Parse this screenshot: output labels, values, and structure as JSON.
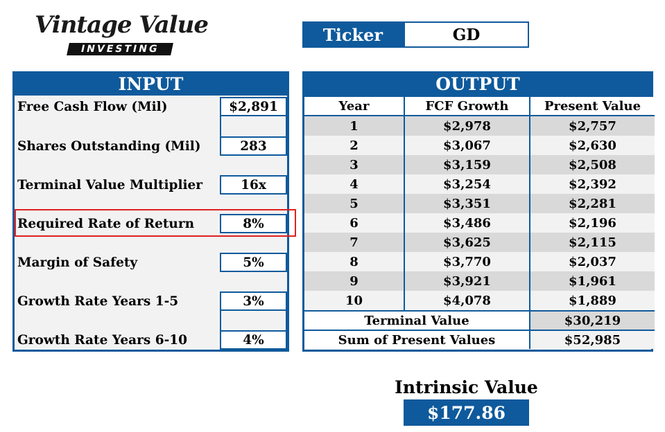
{
  "logo": {
    "script": "Vintage Value",
    "bar": "INVESTING"
  },
  "ticker": {
    "label": "Ticker",
    "value": "GD"
  },
  "input": {
    "title": "INPUT",
    "rows": [
      {
        "label": "Free Cash Flow (Mil)",
        "value": "$2,891"
      },
      {
        "label": "Shares Outstanding (Mil)",
        "value": "283"
      },
      {
        "label": "Terminal Value Multiplier",
        "value": "16x"
      },
      {
        "label": "Required Rate of Return",
        "value": "8%"
      },
      {
        "label": "Margin of Safety",
        "value": "5%"
      },
      {
        "label": "Growth Rate Years 1-5",
        "value": "3%"
      },
      {
        "label": "Growth Rate Years 6-10",
        "value": "4%"
      }
    ]
  },
  "output": {
    "title": "OUTPUT",
    "headers": [
      "Year",
      "FCF Growth",
      "Present Value"
    ],
    "rows": [
      [
        "1",
        "$2,978",
        "$2,757"
      ],
      [
        "2",
        "$3,067",
        "$2,630"
      ],
      [
        "3",
        "$3,159",
        "$2,508"
      ],
      [
        "4",
        "$3,254",
        "$2,392"
      ],
      [
        "5",
        "$3,351",
        "$2,281"
      ],
      [
        "6",
        "$3,486",
        "$2,196"
      ],
      [
        "7",
        "$3,625",
        "$2,115"
      ],
      [
        "8",
        "$3,770",
        "$2,037"
      ],
      [
        "9",
        "$3,921",
        "$1,961"
      ],
      [
        "10",
        "$4,078",
        "$1,889"
      ]
    ],
    "terminal_label": "Terminal Value",
    "terminal_value": "$30,219",
    "sum_label": "Sum of Present Values",
    "sum_value": "$52,985"
  },
  "intrinsic": {
    "title": "Intrinsic Value",
    "value": "$177.86"
  },
  "colors": {
    "brand_blue": "#0f5a9c",
    "highlight_red": "#e02020"
  }
}
